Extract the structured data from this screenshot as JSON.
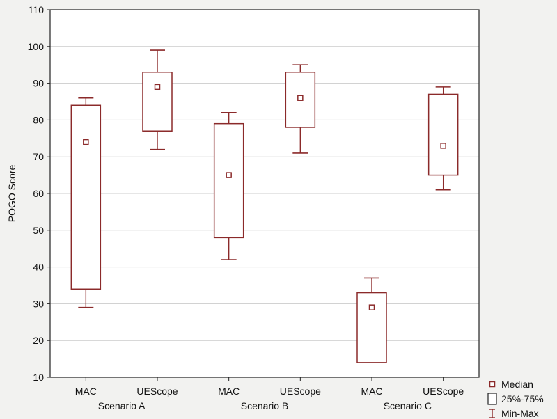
{
  "chart_data": {
    "type": "boxplot",
    "title": "",
    "ylabel": "POGO Score",
    "ylim": [
      10,
      110
    ],
    "yticks": [
      10,
      20,
      30,
      40,
      50,
      60,
      70,
      80,
      90,
      100,
      110
    ],
    "grid": "horizontal",
    "legend_position": "bottom-right",
    "colors": {
      "box": "#8b2a2a",
      "grid": "#cccccc",
      "frame": "#222222",
      "background": "#ffffff"
    },
    "groups": [
      "Scenario A",
      "Scenario B",
      "Scenario C"
    ],
    "categories": [
      "MAC",
      "UEScope",
      "MAC",
      "UEScope",
      "MAC",
      "UEScope"
    ],
    "series": [
      {
        "category": "MAC",
        "group": "Scenario A",
        "min": 29,
        "q1": 34,
        "median": 74,
        "q3": 84,
        "max": 86
      },
      {
        "category": "UEScope",
        "group": "Scenario A",
        "min": 72,
        "q1": 77,
        "median": 89,
        "q3": 93,
        "max": 99
      },
      {
        "category": "MAC",
        "group": "Scenario B",
        "min": 42,
        "q1": 48,
        "median": 65,
        "q3": 79,
        "max": 82
      },
      {
        "category": "UEScope",
        "group": "Scenario B",
        "min": 71,
        "q1": 78,
        "median": 86,
        "q3": 93,
        "max": 95
      },
      {
        "category": "MAC",
        "group": "Scenario C",
        "min": 14,
        "q1": 14,
        "median": 29,
        "q3": 33,
        "max": 37
      },
      {
        "category": "UEScope",
        "group": "Scenario C",
        "min": 61,
        "q1": 65,
        "median": 73,
        "q3": 87,
        "max": 89
      }
    ],
    "legend": [
      {
        "label": "Median",
        "symbol": "small-square"
      },
      {
        "label": "25%-75%",
        "symbol": "box"
      },
      {
        "label": "Min-Max",
        "symbol": "whisker"
      }
    ]
  }
}
